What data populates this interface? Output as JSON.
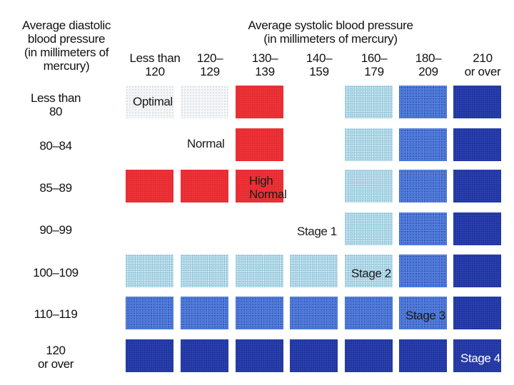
{
  "row_header": [
    "Average diastolic",
    "blood pressure",
    "(in millimeters of",
    "mercury)"
  ],
  "column_header": [
    "Average systolic blood pressure",
    "(in millimeters of mercury)"
  ],
  "columns": [
    [
      "Less than",
      "120"
    ],
    [
      "120–",
      "129"
    ],
    [
      "130–",
      "139"
    ],
    [
      "140–",
      "159"
    ],
    [
      "160–",
      "179"
    ],
    [
      "180–",
      "209"
    ],
    [
      "210",
      "or over"
    ]
  ],
  "rows": [
    [
      "Less than",
      "80"
    ],
    [
      "80–84"
    ],
    [
      "85–89"
    ],
    [
      "90–99"
    ],
    [
      "100–109"
    ],
    [
      "110–119"
    ],
    [
      "120",
      "or over"
    ]
  ],
  "categories": {
    "optimal": "Optimal",
    "normal": "Normal",
    "high_normal": [
      "High",
      "Normal"
    ],
    "stage1": "Stage 1",
    "stage2": "Stage 2",
    "stage3": "Stage 3",
    "stage4": "Stage 4"
  },
  "colors": {
    "high_normal": "#e8262b",
    "stage2": "#c6e6ef",
    "stage3": "#3e6bd0",
    "stage4": "#1c2f9c"
  },
  "grid": [
    [
      "fade",
      "fade",
      "red",
      "none",
      "s1",
      "s2",
      "s3"
    ],
    [
      "none",
      "none",
      "red",
      "none",
      "s1",
      "s2",
      "s3"
    ],
    [
      "red",
      "red",
      "red",
      "none",
      "s1",
      "s2",
      "s3"
    ],
    [
      "none",
      "none",
      "none",
      "none",
      "s1",
      "s2",
      "s3"
    ],
    [
      "s1",
      "s1",
      "s1",
      "s1",
      "s1",
      "s2",
      "s3"
    ],
    [
      "s2",
      "s2",
      "s2",
      "s2",
      "s2",
      "s2",
      "s3"
    ],
    [
      "s3",
      "s3",
      "s3",
      "s3",
      "s3",
      "s3",
      "s3"
    ]
  ]
}
